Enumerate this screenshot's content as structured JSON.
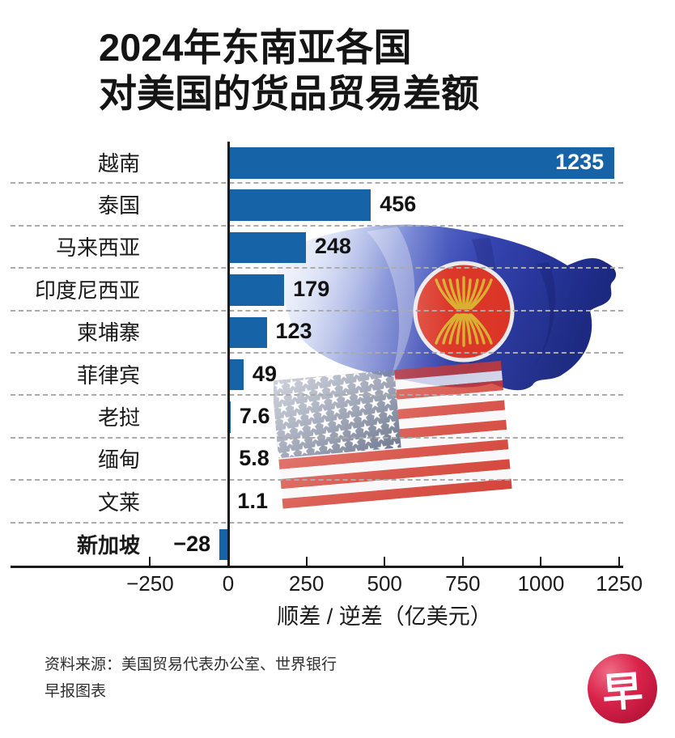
{
  "title": {
    "line1": "2024年东南亚各国",
    "line2": "对美国的货品贸易差额"
  },
  "chart_data": {
    "type": "bar",
    "orientation": "horizontal",
    "title": "2024年东南亚各国对美国的货品贸易差额",
    "xlabel": "顺差 / 逆差（亿美元）",
    "unit": "亿美元",
    "xlim": [
      -250,
      1250
    ],
    "grid": "dashed horizontal row separators",
    "bar_color": "#1763a8",
    "x_ticks": [
      {
        "value": -250,
        "label": "−250"
      },
      {
        "value": 0,
        "label": "0"
      },
      {
        "value": 250,
        "label": "250"
      },
      {
        "value": 500,
        "label": "500"
      },
      {
        "value": 750,
        "label": "750"
      },
      {
        "value": 1000,
        "label": "1000"
      },
      {
        "value": 1250,
        "label": "1250"
      }
    ],
    "rows": [
      {
        "label": "越南",
        "value": 1235,
        "value_label": "1235",
        "label_pos": "inside-right",
        "bold": false
      },
      {
        "label": "泰国",
        "value": 456,
        "value_label": "456",
        "label_pos": "outside-right",
        "bold": false
      },
      {
        "label": "马来西亚",
        "value": 248,
        "value_label": "248",
        "label_pos": "outside-right",
        "bold": false
      },
      {
        "label": "印度尼西亚",
        "value": 179,
        "value_label": "179",
        "label_pos": "outside-right",
        "bold": false
      },
      {
        "label": "柬埔寨",
        "value": 123,
        "value_label": "123",
        "label_pos": "outside-right",
        "bold": false
      },
      {
        "label": "菲律宾",
        "value": 49,
        "value_label": "49",
        "label_pos": "outside-right",
        "bold": false
      },
      {
        "label": "老挝",
        "value": 7.6,
        "value_label": "7.6",
        "label_pos": "outside-right",
        "bold": false
      },
      {
        "label": "缅甸",
        "value": 5.8,
        "value_label": "5.8",
        "label_pos": "outside-right",
        "bold": false
      },
      {
        "label": "文莱",
        "value": 1.1,
        "value_label": "1.1",
        "label_pos": "outside-right",
        "bold": false
      },
      {
        "label": "新加坡",
        "value": -28,
        "value_label": "−28",
        "label_pos": "outside-left",
        "bold": true
      }
    ]
  },
  "footer": {
    "source_line1": "资料来源：美国贸易代表办公室、世界银行",
    "source_line2": "早报图表"
  },
  "logo": {
    "char": "早",
    "bg_color": "#c0103a"
  },
  "decor": {
    "asean_flag_blue": "#2433a8",
    "asean_emblem_red": "#d92b1c",
    "asean_emblem_yellow": "#d8ab25",
    "us_flag_red": "#d23a2e",
    "us_canton_blue": "#5d6880"
  }
}
